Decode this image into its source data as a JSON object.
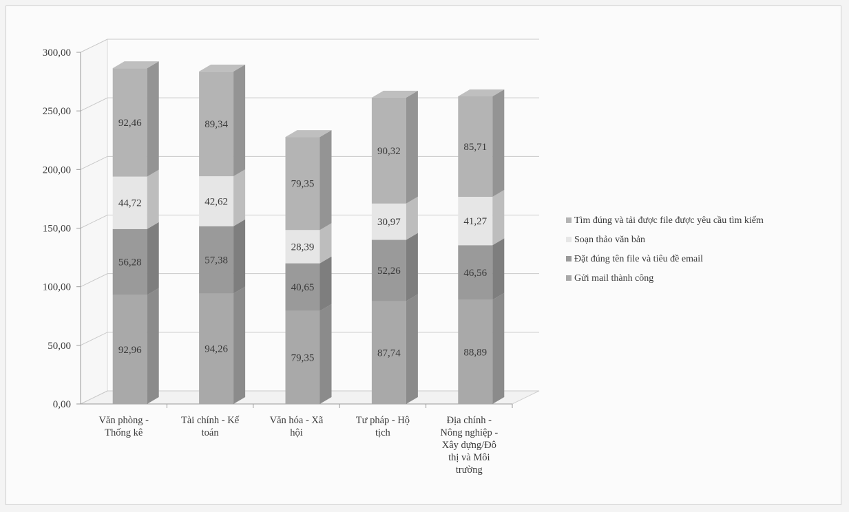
{
  "chart_data": {
    "type": "bar",
    "stacked": true,
    "three_d": true,
    "categories": [
      [
        "Văn phòng -",
        "Thống kê"
      ],
      [
        "Tài chính - Kế",
        "toán"
      ],
      [
        "Văn hóa - Xã",
        "hội"
      ],
      [
        "Tư pháp - Hộ",
        "tịch"
      ],
      [
        "Địa chính -",
        "Nông nghiệp -",
        "Xây dựng/Đô",
        "thị  và Môi",
        "trường"
      ]
    ],
    "series": [
      {
        "name": "Gửi mail thành công",
        "values": [
          92.96,
          94.26,
          79.35,
          87.74,
          88.89
        ],
        "labels": [
          "92,96",
          "94,26",
          "79,35",
          "87,74",
          "88,89"
        ],
        "color": "#a9a9a9"
      },
      {
        "name": "Đặt đúng tên file và tiêu đề email",
        "values": [
          56.28,
          57.38,
          40.65,
          52.26,
          46.56
        ],
        "labels": [
          "56,28",
          "57,38",
          "40,65",
          "52,26",
          "46,56"
        ],
        "color": "#9a9a9a"
      },
      {
        "name": "Soạn thảo văn bản",
        "values": [
          44.72,
          42.62,
          28.39,
          30.97,
          41.27
        ],
        "labels": [
          "44,72",
          "42,62",
          "28,39",
          "30,97",
          "41,27"
        ],
        "color": "#e6e6e6"
      },
      {
        "name": "Tìm đúng và tải được file được yêu cầu tìm kiếm",
        "values": [
          92.46,
          89.34,
          79.35,
          90.32,
          85.71
        ],
        "labels": [
          "92,46",
          "89,34",
          "79,35",
          "90,32",
          "85,71"
        ],
        "color": "#b4b4b4"
      }
    ],
    "legend_order": [
      3,
      2,
      1,
      0
    ],
    "y_ticks": [
      "0,00",
      "50,00",
      "100,00",
      "150,00",
      "200,00",
      "250,00",
      "300,00"
    ],
    "ylim": [
      0,
      300
    ],
    "grid": true,
    "legend_position": "right"
  }
}
